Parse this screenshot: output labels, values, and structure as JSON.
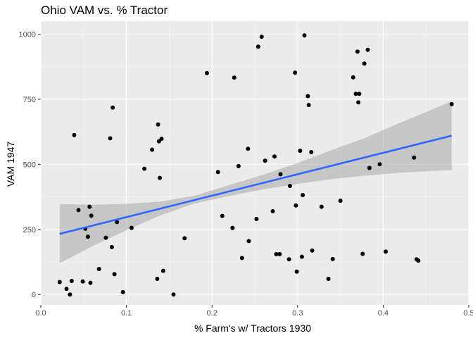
{
  "chart_data": {
    "type": "scatter",
    "title": "Ohio VAM vs. % Tractor",
    "xlabel": "% Farm's w/ Tractors 1930",
    "ylabel": "VAM 1947",
    "xlim": [
      0.0,
      0.5
    ],
    "ylim": [
      -40,
      1050
    ],
    "xticks": [
      {
        "value": 0.0,
        "label": "0.0"
      },
      {
        "value": 0.1,
        "label": "0.1"
      },
      {
        "value": 0.2,
        "label": "0.2"
      },
      {
        "value": 0.3,
        "label": "0.3"
      },
      {
        "value": 0.4,
        "label": "0.4"
      },
      {
        "value": 0.5,
        "label": "0.5"
      }
    ],
    "yticks": [
      {
        "value": 0,
        "label": "0"
      },
      {
        "value": 250,
        "label": "250"
      },
      {
        "value": 500,
        "label": "500"
      },
      {
        "value": 750,
        "label": "750"
      },
      {
        "value": 1000,
        "label": "1000"
      }
    ],
    "grid": true,
    "points": [
      {
        "x": 0.022,
        "y": 48
      },
      {
        "x": 0.03,
        "y": 22
      },
      {
        "x": 0.034,
        "y": 0
      },
      {
        "x": 0.036,
        "y": 52
      },
      {
        "x": 0.039,
        "y": 612
      },
      {
        "x": 0.044,
        "y": 324
      },
      {
        "x": 0.049,
        "y": 50
      },
      {
        "x": 0.052,
        "y": 253
      },
      {
        "x": 0.055,
        "y": 222
      },
      {
        "x": 0.057,
        "y": 337
      },
      {
        "x": 0.058,
        "y": 45
      },
      {
        "x": 0.059,
        "y": 303
      },
      {
        "x": 0.068,
        "y": 98
      },
      {
        "x": 0.076,
        "y": 218
      },
      {
        "x": 0.081,
        "y": 600
      },
      {
        "x": 0.083,
        "y": 182
      },
      {
        "x": 0.084,
        "y": 718
      },
      {
        "x": 0.086,
        "y": 78
      },
      {
        "x": 0.089,
        "y": 278
      },
      {
        "x": 0.096,
        "y": 9
      },
      {
        "x": 0.106,
        "y": 256
      },
      {
        "x": 0.121,
        "y": 483
      },
      {
        "x": 0.13,
        "y": 556
      },
      {
        "x": 0.136,
        "y": 60
      },
      {
        "x": 0.137,
        "y": 653
      },
      {
        "x": 0.138,
        "y": 588
      },
      {
        "x": 0.139,
        "y": 448
      },
      {
        "x": 0.141,
        "y": 598
      },
      {
        "x": 0.143,
        "y": 91
      },
      {
        "x": 0.155,
        "y": 0
      },
      {
        "x": 0.168,
        "y": 216
      },
      {
        "x": 0.194,
        "y": 850
      },
      {
        "x": 0.207,
        "y": 470
      },
      {
        "x": 0.212,
        "y": 302
      },
      {
        "x": 0.224,
        "y": 256
      },
      {
        "x": 0.226,
        "y": 833
      },
      {
        "x": 0.231,
        "y": 493
      },
      {
        "x": 0.235,
        "y": 140
      },
      {
        "x": 0.242,
        "y": 560
      },
      {
        "x": 0.243,
        "y": 205
      },
      {
        "x": 0.252,
        "y": 290
      },
      {
        "x": 0.254,
        "y": 952
      },
      {
        "x": 0.258,
        "y": 990
      },
      {
        "x": 0.262,
        "y": 514
      },
      {
        "x": 0.271,
        "y": 320
      },
      {
        "x": 0.273,
        "y": 530
      },
      {
        "x": 0.275,
        "y": 155
      },
      {
        "x": 0.279,
        "y": 155
      },
      {
        "x": 0.28,
        "y": 462
      },
      {
        "x": 0.29,
        "y": 135
      },
      {
        "x": 0.291,
        "y": 417
      },
      {
        "x": 0.297,
        "y": 852
      },
      {
        "x": 0.298,
        "y": 342
      },
      {
        "x": 0.299,
        "y": 88
      },
      {
        "x": 0.303,
        "y": 552
      },
      {
        "x": 0.305,
        "y": 145
      },
      {
        "x": 0.306,
        "y": 382
      },
      {
        "x": 0.308,
        "y": 995
      },
      {
        "x": 0.312,
        "y": 762
      },
      {
        "x": 0.313,
        "y": 728
      },
      {
        "x": 0.316,
        "y": 547
      },
      {
        "x": 0.317,
        "y": 169
      },
      {
        "x": 0.328,
        "y": 337
      },
      {
        "x": 0.336,
        "y": 60
      },
      {
        "x": 0.341,
        "y": 136
      },
      {
        "x": 0.35,
        "y": 360
      },
      {
        "x": 0.365,
        "y": 834
      },
      {
        "x": 0.368,
        "y": 771
      },
      {
        "x": 0.37,
        "y": 933
      },
      {
        "x": 0.371,
        "y": 738
      },
      {
        "x": 0.372,
        "y": 771
      },
      {
        "x": 0.376,
        "y": 156
      },
      {
        "x": 0.378,
        "y": 887
      },
      {
        "x": 0.382,
        "y": 940
      },
      {
        "x": 0.384,
        "y": 486
      },
      {
        "x": 0.396,
        "y": 500
      },
      {
        "x": 0.403,
        "y": 165
      },
      {
        "x": 0.436,
        "y": 526
      },
      {
        "x": 0.439,
        "y": 135
      },
      {
        "x": 0.441,
        "y": 130
      },
      {
        "x": 0.48,
        "y": 731
      }
    ],
    "trend_line": {
      "method": "linear",
      "x": [
        0.022,
        0.48
      ],
      "y": [
        233,
        610
      ]
    },
    "confidence_band": [
      {
        "x": 0.022,
        "lower": 120,
        "upper": 347
      },
      {
        "x": 0.06,
        "lower": 185,
        "upper": 345
      },
      {
        "x": 0.1,
        "lower": 247,
        "upper": 348
      },
      {
        "x": 0.14,
        "lower": 304,
        "upper": 357
      },
      {
        "x": 0.18,
        "lower": 350,
        "upper": 380
      },
      {
        "x": 0.22,
        "lower": 378,
        "upper": 420
      },
      {
        "x": 0.26,
        "lower": 404,
        "upper": 460
      },
      {
        "x": 0.3,
        "lower": 425,
        "upper": 505
      },
      {
        "x": 0.34,
        "lower": 443,
        "upper": 555
      },
      {
        "x": 0.38,
        "lower": 457,
        "upper": 603
      },
      {
        "x": 0.42,
        "lower": 468,
        "upper": 660
      },
      {
        "x": 0.48,
        "lower": 478,
        "upper": 742
      }
    ],
    "colors": {
      "panel_background": "#ebebeb",
      "grid_major": "#ffffff",
      "grid_minor": "#f5f5f5",
      "points": "#000000",
      "trend_line": "#3366ff",
      "confidence_band": "#999999"
    }
  }
}
